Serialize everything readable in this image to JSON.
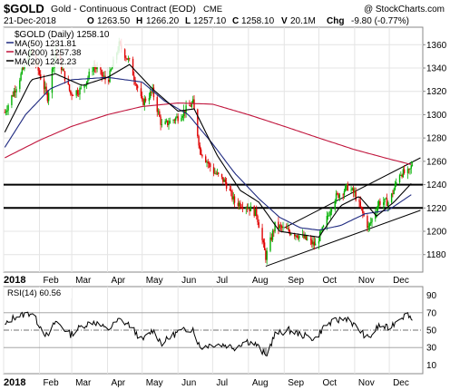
{
  "header": {
    "symbol": "$GOLD",
    "name": "Gold - Continuous Contract (EOD)",
    "exchange": "CME",
    "date": "21-Dec-2018",
    "open_label": "O",
    "open": "1263.50",
    "high_label": "H",
    "high": "1266.20",
    "low_label": "L",
    "low": "1257.10",
    "close_label": "C",
    "close": "1258.10",
    "volume_label": "V",
    "volume": "20.1M",
    "change_label": "Chg",
    "change": "-9.80 (-0.77%)",
    "watermark": "@ StockCharts.com"
  },
  "legend": {
    "price": "$GOLD (Daily) 1258.10",
    "ma50": "MA(50) 1231.81",
    "ma200": "MA(200) 1257.38",
    "ma20": "MA(20) 1242.23",
    "rsi": "RSI(14) 60.56"
  },
  "colors": {
    "up": "#00b000",
    "down": "#e00000",
    "ma50": "#1f2a80",
    "ma200": "#c0143c",
    "ma20": "#000000",
    "rsi_line": "#000000",
    "rsi_fill": "#a8a8a8"
  },
  "chart_data": [
    {
      "type": "candlestick",
      "title": "$GOLD (Daily) 1258.10",
      "y_ticks": [
        1180,
        1200,
        1220,
        1240,
        1260,
        1280,
        1300,
        1320,
        1340,
        1360
      ],
      "ylim": [
        1165,
        1375
      ],
      "x_ticks": [
        "2018",
        "Feb",
        "Mar",
        "Apr",
        "May",
        "Jun",
        "Jul",
        "Aug",
        "Sep",
        "Oct",
        "Nov",
        "Dec"
      ],
      "horizontal_lines": [
        1240,
        1220
      ],
      "anchors": [
        [
          "2018-01-02",
          1302
        ],
        [
          "2018-01-10",
          1320
        ],
        [
          "2018-01-25",
          1355
        ],
        [
          "2018-02-08",
          1315
        ],
        [
          "2018-02-15",
          1355
        ],
        [
          "2018-02-28",
          1318
        ],
        [
          "2018-03-10",
          1322
        ],
        [
          "2018-03-20",
          1342
        ],
        [
          "2018-04-01",
          1328
        ],
        [
          "2018-04-11",
          1360
        ],
        [
          "2018-04-20",
          1345
        ],
        [
          "2018-05-01",
          1310
        ],
        [
          "2018-05-10",
          1320
        ],
        [
          "2018-05-18",
          1290
        ],
        [
          "2018-06-01",
          1298
        ],
        [
          "2018-06-14",
          1310
        ],
        [
          "2018-06-20",
          1270
        ],
        [
          "2018-07-01",
          1252
        ],
        [
          "2018-07-12",
          1242
        ],
        [
          "2018-07-20",
          1225
        ],
        [
          "2018-07-30",
          1222
        ],
        [
          "2018-08-08",
          1215
        ],
        [
          "2018-08-16",
          1178
        ],
        [
          "2018-08-24",
          1205
        ],
        [
          "2018-09-05",
          1200
        ],
        [
          "2018-09-15",
          1196
        ],
        [
          "2018-09-28",
          1188
        ],
        [
          "2018-10-06",
          1205
        ],
        [
          "2018-10-14",
          1228
        ],
        [
          "2018-10-26",
          1238
        ],
        [
          "2018-11-01",
          1232
        ],
        [
          "2018-11-13",
          1203
        ],
        [
          "2018-11-22",
          1225
        ],
        [
          "2018-12-01",
          1225
        ],
        [
          "2018-12-10",
          1250
        ],
        [
          "2018-12-18",
          1250
        ],
        [
          "2018-12-21",
          1258
        ]
      ],
      "trend_lines": [
        {
          "from": [
            "2018-08-16",
            1170
          ],
          "to": [
            "2018-12-28",
            1218
          ]
        },
        {
          "from": [
            "2018-09-01",
            1203
          ],
          "to": [
            "2018-12-28",
            1263
          ]
        }
      ],
      "series": [
        {
          "name": "MA(50)",
          "points": [
            [
              "2018-01-02",
              1272
            ],
            [
              "2018-01-20",
              1300
            ],
            [
              "2018-02-10",
              1322
            ],
            [
              "2018-03-01",
              1330
            ],
            [
              "2018-04-01",
              1332
            ],
            [
              "2018-05-01",
              1328
            ],
            [
              "2018-05-20",
              1312
            ],
            [
              "2018-06-10",
              1300
            ],
            [
              "2018-07-01",
              1275
            ],
            [
              "2018-07-20",
              1250
            ],
            [
              "2018-08-10",
              1228
            ],
            [
              "2018-08-28",
              1212
            ],
            [
              "2018-09-15",
              1203
            ],
            [
              "2018-10-01",
              1201
            ],
            [
              "2018-10-20",
              1205
            ],
            [
              "2018-11-10",
              1215
            ],
            [
              "2018-11-30",
              1218
            ],
            [
              "2018-12-21",
              1232
            ]
          ]
        },
        {
          "name": "MA(200)",
          "points": [
            [
              "2018-01-02",
              1263
            ],
            [
              "2018-02-01",
              1278
            ],
            [
              "2018-03-01",
              1290
            ],
            [
              "2018-04-01",
              1300
            ],
            [
              "2018-05-01",
              1307
            ],
            [
              "2018-06-01",
              1310
            ],
            [
              "2018-07-01",
              1309
            ],
            [
              "2018-08-01",
              1300
            ],
            [
              "2018-09-01",
              1290
            ],
            [
              "2018-10-01",
              1280
            ],
            [
              "2018-11-01",
              1270
            ],
            [
              "2018-12-01",
              1262
            ],
            [
              "2018-12-21",
              1257
            ]
          ]
        },
        {
          "name": "MA(20)",
          "points": [
            [
              "2018-01-02",
              1285
            ],
            [
              "2018-01-25",
              1330
            ],
            [
              "2018-02-15",
              1335
            ],
            [
              "2018-03-10",
              1325
            ],
            [
              "2018-04-01",
              1332
            ],
            [
              "2018-04-20",
              1343
            ],
            [
              "2018-05-10",
              1322
            ],
            [
              "2018-06-01",
              1303
            ],
            [
              "2018-06-15",
              1305
            ],
            [
              "2018-07-05",
              1265
            ],
            [
              "2018-07-25",
              1235
            ],
            [
              "2018-08-10",
              1225
            ],
            [
              "2018-08-28",
              1200
            ],
            [
              "2018-09-10",
              1198
            ],
            [
              "2018-10-01",
              1195
            ],
            [
              "2018-10-20",
              1222
            ],
            [
              "2018-11-05",
              1230
            ],
            [
              "2018-11-20",
              1213
            ],
            [
              "2018-12-05",
              1225
            ],
            [
              "2018-12-21",
              1242
            ]
          ]
        }
      ]
    },
    {
      "type": "line",
      "title": "RSI(14) 60.56",
      "y_ticks": [
        10,
        30,
        50,
        70,
        90
      ],
      "ylim": [
        0,
        100
      ],
      "reference_lines": [
        70,
        50,
        30
      ],
      "x_ticks": [
        "2018",
        "Feb",
        "Mar",
        "Apr",
        "May",
        "Jun",
        "Jul",
        "Aug",
        "Sep",
        "Oct",
        "Nov",
        "Dec"
      ],
      "points": [
        [
          "2018-01-02",
          55
        ],
        [
          "2018-01-10",
          65
        ],
        [
          "2018-01-25",
          70
        ],
        [
          "2018-02-08",
          42
        ],
        [
          "2018-02-15",
          60
        ],
        [
          "2018-02-28",
          45
        ],
        [
          "2018-03-10",
          55
        ],
        [
          "2018-03-20",
          60
        ],
        [
          "2018-04-01",
          50
        ],
        [
          "2018-04-11",
          62
        ],
        [
          "2018-04-20",
          56
        ],
        [
          "2018-05-01",
          38
        ],
        [
          "2018-05-10",
          50
        ],
        [
          "2018-05-18",
          35
        ],
        [
          "2018-06-01",
          48
        ],
        [
          "2018-06-14",
          52
        ],
        [
          "2018-06-20",
          30
        ],
        [
          "2018-07-01",
          34
        ],
        [
          "2018-07-12",
          33
        ],
        [
          "2018-07-20",
          30
        ],
        [
          "2018-07-30",
          38
        ],
        [
          "2018-08-08",
          33
        ],
        [
          "2018-08-16",
          20
        ],
        [
          "2018-08-24",
          45
        ],
        [
          "2018-09-05",
          50
        ],
        [
          "2018-09-15",
          45
        ],
        [
          "2018-09-28",
          40
        ],
        [
          "2018-10-06",
          55
        ],
        [
          "2018-10-14",
          60
        ],
        [
          "2018-10-26",
          64
        ],
        [
          "2018-11-01",
          55
        ],
        [
          "2018-11-13",
          40
        ],
        [
          "2018-11-22",
          55
        ],
        [
          "2018-12-01",
          52
        ],
        [
          "2018-12-10",
          65
        ],
        [
          "2018-12-18",
          68
        ],
        [
          "2018-12-21",
          60.56
        ]
      ]
    }
  ]
}
